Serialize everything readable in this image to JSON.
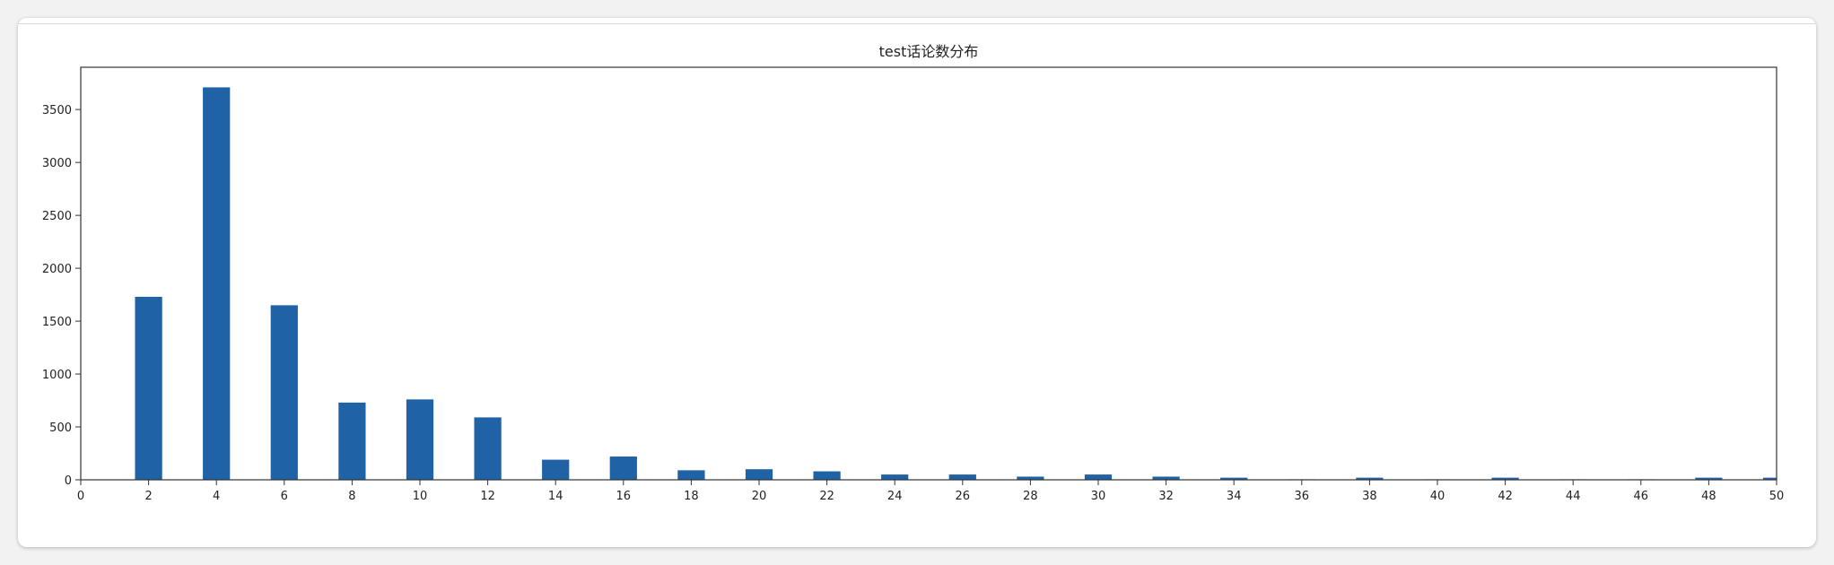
{
  "chart_data": {
    "type": "bar",
    "title": "test话论数分布",
    "xlabel": "",
    "ylabel": "",
    "xlim": [
      0,
      50
    ],
    "ylim": [
      0,
      3900
    ],
    "x_ticks": [
      0,
      2,
      4,
      6,
      8,
      10,
      12,
      14,
      16,
      18,
      20,
      22,
      24,
      26,
      28,
      30,
      32,
      34,
      36,
      38,
      40,
      42,
      44,
      46,
      48,
      50
    ],
    "y_ticks": [
      0,
      500,
      1000,
      1500,
      2000,
      2500,
      3000,
      3500
    ],
    "x": [
      2,
      4,
      6,
      8,
      10,
      12,
      14,
      16,
      18,
      20,
      22,
      24,
      26,
      28,
      30,
      32,
      34,
      36,
      38,
      40,
      42,
      44,
      46,
      48,
      50
    ],
    "values": [
      1730,
      3710,
      1650,
      730,
      760,
      590,
      190,
      220,
      90,
      100,
      80,
      50,
      50,
      30,
      50,
      30,
      20,
      5,
      20,
      5,
      20,
      5,
      5,
      20,
      20
    ],
    "bar_color": "#1f63a6",
    "grid": false,
    "legend": "none"
  }
}
